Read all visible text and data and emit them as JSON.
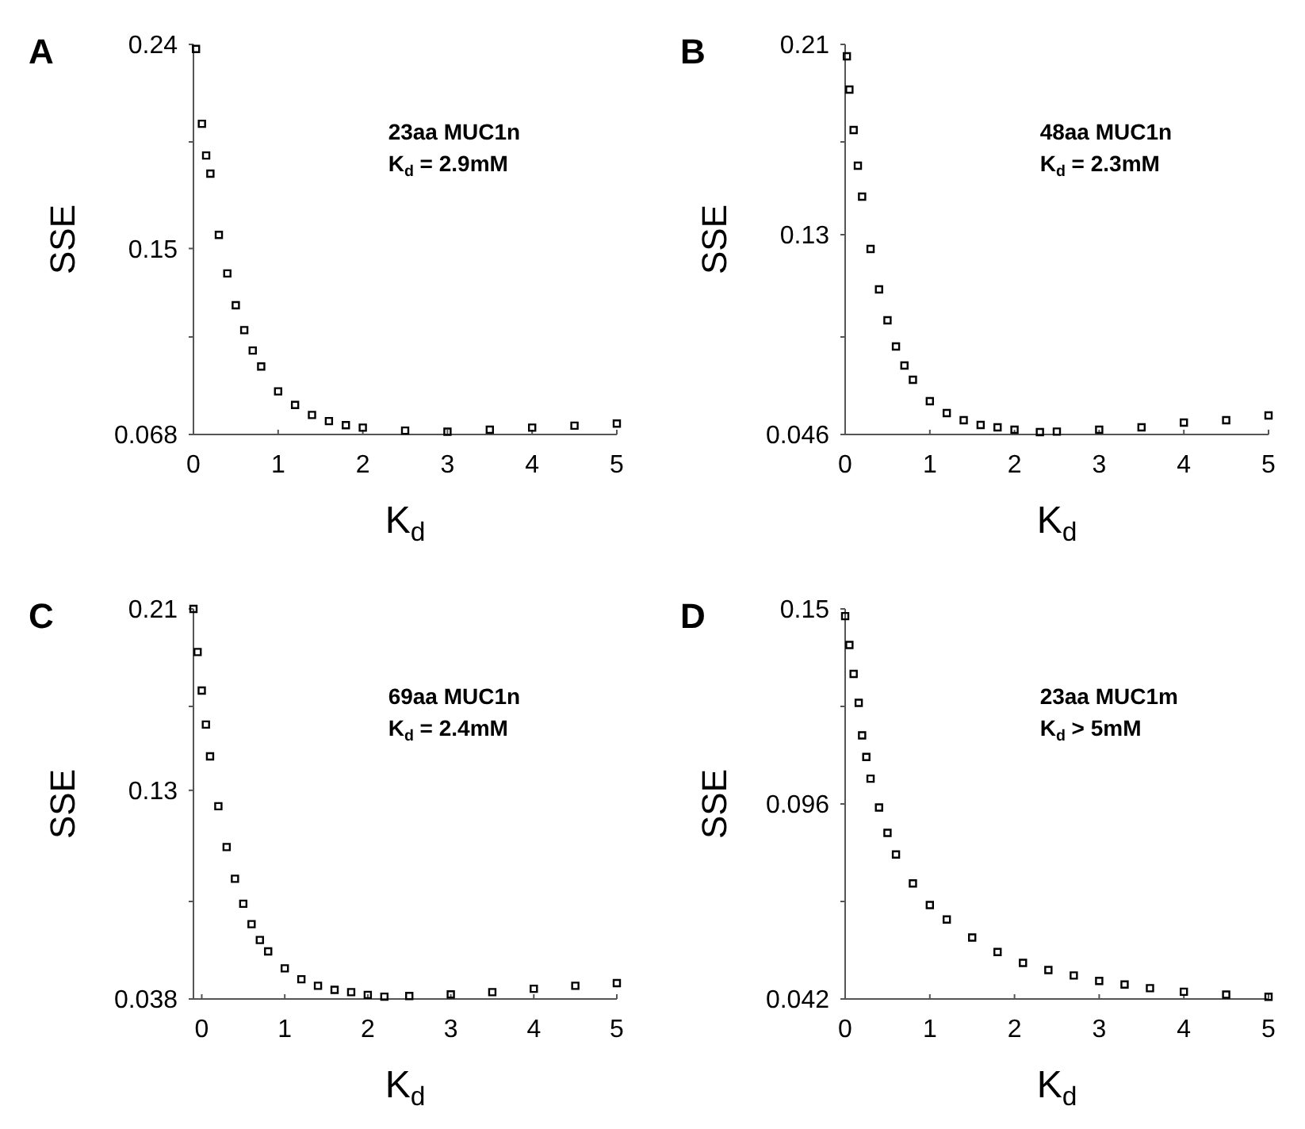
{
  "chart_data": [
    {
      "type": "scatter",
      "title": "A",
      "xlabel": "K$_{d}$",
      "ylabel": "SSE",
      "annotations": [
        "23aa MUC1n",
        "K$_{d}$ = 2.9mM"
      ],
      "marker": "square",
      "color": "#000000",
      "xlim": [
        0,
        5
      ],
      "ylim": [
        0.068,
        0.24
      ],
      "xticks": [
        0,
        1,
        2,
        3,
        4,
        5
      ],
      "yticks": [
        0.068,
        {
          "value": 0.111,
          "label": null
        },
        0.15,
        {
          "value": 0.197,
          "label": null
        },
        0.24
      ],
      "x": [
        0.03,
        0.1,
        0.15,
        0.2,
        0.3,
        0.4,
        0.5,
        0.6,
        0.7,
        0.8,
        1.0,
        1.2,
        1.4,
        1.6,
        1.8,
        2.0,
        2.5,
        3.0,
        3.5,
        4.0,
        4.5,
        5.0
      ],
      "values": [
        0.238,
        0.205,
        0.191,
        0.183,
        0.156,
        0.139,
        0.125,
        0.114,
        0.105,
        0.098,
        0.087,
        0.081,
        0.0766,
        0.0739,
        0.0721,
        0.071,
        0.0697,
        0.0692,
        0.0701,
        0.071,
        0.0719,
        0.0728
      ]
    },
    {
      "type": "scatter",
      "title": "B",
      "xlabel": "K$_{d}$",
      "ylabel": "SSE",
      "annotations": [
        "48aa MUC1n",
        "K$_{d}$ = 2.3mM"
      ],
      "marker": "square",
      "color": "#000000",
      "xlim": [
        0,
        5
      ],
      "ylim": [
        0.046,
        0.21
      ],
      "xticks": [
        0,
        1,
        2,
        3,
        4,
        5
      ],
      "yticks": [
        0.046,
        {
          "value": 0.087,
          "label": null
        },
        0.13,
        {
          "value": 0.169,
          "label": null
        },
        0.21
      ],
      "x": [
        0.02,
        0.05,
        0.1,
        0.15,
        0.2,
        0.3,
        0.4,
        0.5,
        0.6,
        0.7,
        0.8,
        1.0,
        1.2,
        1.4,
        1.6,
        1.8,
        2.0,
        2.3,
        2.5,
        3.0,
        3.5,
        4.0,
        4.5,
        5.0
      ],
      "values": [
        0.205,
        0.191,
        0.174,
        0.159,
        0.146,
        0.124,
        0.107,
        0.094,
        0.083,
        0.075,
        0.069,
        0.06,
        0.055,
        0.052,
        0.05,
        0.049,
        0.048,
        0.047,
        0.0472,
        0.048,
        0.049,
        0.051,
        0.052,
        0.054
      ]
    },
    {
      "type": "scatter",
      "title": "C",
      "xlabel": "K$_{d}$",
      "ylabel": "SSE",
      "annotations": [
        "69aa MUC1n",
        "K$_{d}$ = 2.4mM"
      ],
      "marker": "square",
      "color": "#000000",
      "xlim": [
        -0.1,
        5
      ],
      "ylim": [
        0.038,
        0.21
      ],
      "xticks": [
        0,
        1,
        2,
        3,
        4,
        5
      ],
      "yticks": [
        0.038,
        {
          "value": 0.081,
          "label": null
        },
        0.13,
        {
          "value": 0.167,
          "label": null
        },
        0.21
      ],
      "x": [
        -0.1,
        -0.05,
        0.0,
        0.05,
        0.1,
        0.2,
        0.3,
        0.4,
        0.5,
        0.6,
        0.7,
        0.8,
        1.0,
        1.2,
        1.4,
        1.6,
        1.8,
        2.0,
        2.2,
        2.5,
        3.0,
        3.5,
        4.0,
        4.5,
        5.0
      ],
      "values": [
        0.21,
        0.191,
        0.174,
        0.159,
        0.145,
        0.123,
        0.105,
        0.091,
        0.08,
        0.071,
        0.064,
        0.059,
        0.0515,
        0.0467,
        0.0438,
        0.042,
        0.041,
        0.0398,
        0.039,
        0.0393,
        0.04,
        0.041,
        0.0425,
        0.0438,
        0.045
      ]
    },
    {
      "type": "scatter",
      "title": "D",
      "xlabel": "K$_{d}$",
      "ylabel": "SSE",
      "annotations": [
        "23aa MUC1m",
        "K$_{d}$ > 5mM"
      ],
      "marker": "square",
      "color": "#000000",
      "xlim": [
        0,
        5
      ],
      "ylim": [
        0.042,
        0.15
      ],
      "xticks": [
        0,
        1,
        2,
        3,
        4,
        5
      ],
      "yticks": [
        0.042,
        {
          "value": 0.069,
          "label": null
        },
        0.096,
        {
          "value": 0.123,
          "label": null
        },
        0.15
      ],
      "x": [
        0.0,
        0.05,
        0.1,
        0.16,
        0.2,
        0.25,
        0.3,
        0.4,
        0.5,
        0.6,
        0.8,
        1.0,
        1.2,
        1.5,
        1.8,
        2.1,
        2.4,
        2.7,
        3.0,
        3.3,
        3.6,
        4.0,
        4.5,
        5.0
      ],
      "values": [
        0.148,
        0.14,
        0.132,
        0.124,
        0.115,
        0.109,
        0.103,
        0.095,
        0.088,
        0.082,
        0.074,
        0.068,
        0.064,
        0.059,
        0.055,
        0.052,
        0.05,
        0.0485,
        0.047,
        0.046,
        0.045,
        0.044,
        0.0432,
        0.0426
      ]
    }
  ]
}
